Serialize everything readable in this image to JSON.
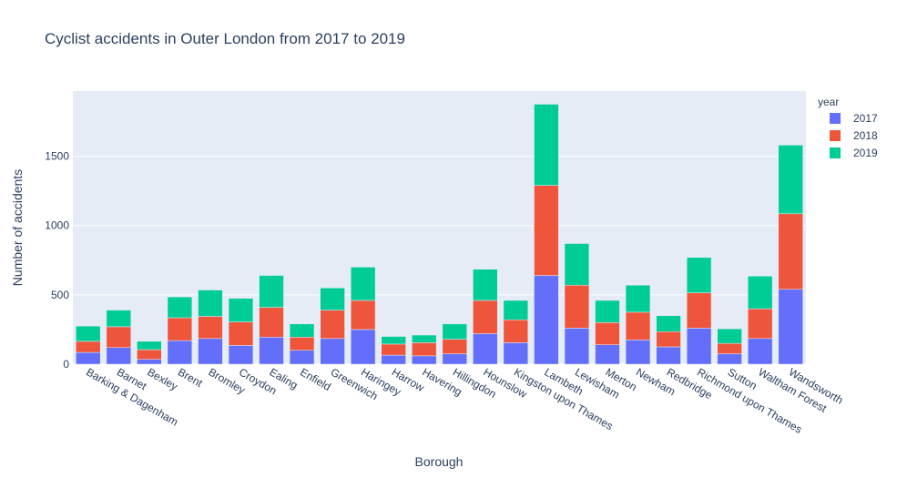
{
  "chart_data": {
    "type": "bar",
    "barmode": "stack",
    "title": "Cyclist accidents in Outer London from 2017 to 2019",
    "xlabel": "Borough",
    "ylabel": "Number of accidents",
    "ylim": [
      0,
      1970
    ],
    "yticks": [
      0,
      500,
      1000,
      1500
    ],
    "grid": true,
    "legend_title": "year",
    "legend_position": "top-right",
    "categories": [
      "Barking & Dagenham",
      "Barnet",
      "Bexley",
      "Brent",
      "Bromley",
      "Croydon",
      "Ealing",
      "Enfield",
      "Greenwich",
      "Haringey",
      "Harrow",
      "Havering",
      "Hillingdon",
      "Hounslow",
      "Kingston upon Thames",
      "Lambeth",
      "Lewisham",
      "Merton",
      "Newham",
      "Redbridge",
      "Richmond upon Thames",
      "Sutton",
      "Waltham Forest",
      "Wandsworth"
    ],
    "series": [
      {
        "name": "2017",
        "color": "#636efa",
        "values": [
          85,
          120,
          35,
          170,
          185,
          135,
          195,
          100,
          185,
          250,
          65,
          60,
          75,
          220,
          155,
          640,
          260,
          140,
          175,
          125,
          260,
          75,
          185,
          540
        ]
      },
      {
        "name": "2018",
        "color": "#ef553b",
        "values": [
          80,
          150,
          70,
          165,
          160,
          170,
          215,
          95,
          205,
          210,
          80,
          95,
          105,
          240,
          165,
          650,
          310,
          160,
          200,
          110,
          255,
          75,
          215,
          545
        ]
      },
      {
        "name": "2019",
        "color": "#00cc96",
        "values": [
          110,
          120,
          60,
          150,
          190,
          170,
          230,
          95,
          160,
          240,
          55,
          55,
          110,
          225,
          140,
          585,
          300,
          160,
          195,
          115,
          255,
          105,
          235,
          495
        ]
      }
    ]
  }
}
